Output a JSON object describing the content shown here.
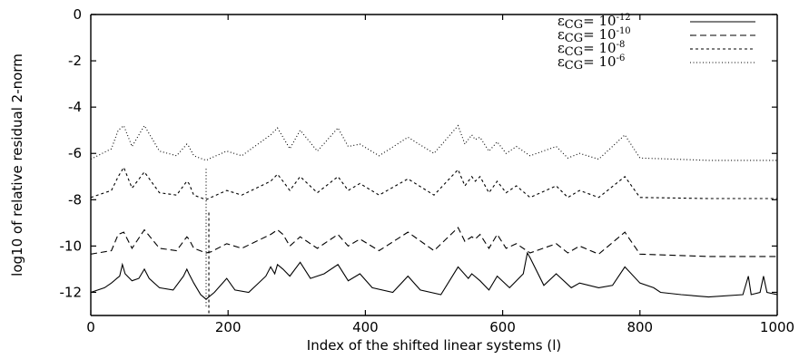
{
  "chart_data": {
    "type": "line",
    "title": "",
    "xlabel": "Index of the shifted linear systems (l)",
    "ylabel": "log10 of relative residual 2-norm",
    "xlim": [
      0,
      1000
    ],
    "ylim": [
      -13,
      0
    ],
    "xticks": [
      0,
      200,
      400,
      600,
      800,
      1000
    ],
    "yticks": [
      0,
      -2,
      -4,
      -6,
      -8,
      -10,
      -12
    ],
    "grid": false,
    "legend_position": "top-right",
    "peak_x": [
      40,
      48,
      78,
      140,
      143,
      198,
      262,
      272,
      280,
      305,
      360,
      392,
      462,
      535,
      555,
      567,
      592,
      620,
      678,
      712,
      778
    ],
    "series": [
      {
        "name": "10^-12",
        "legend_symbol": "ε",
        "legend_sub": "CG",
        "legend_base": "= 10",
        "legend_exp": "-12",
        "dash": "none",
        "x": [
          0,
          20,
          30,
          38,
          42,
          46,
          50,
          60,
          70,
          78,
          85,
          100,
          120,
          135,
          140,
          143,
          150,
          160,
          168,
          172,
          180,
          198,
          210,
          230,
          255,
          262,
          268,
          272,
          280,
          290,
          305,
          320,
          340,
          360,
          375,
          392,
          410,
          440,
          462,
          480,
          510,
          535,
          550,
          555,
          567,
          580,
          592,
          610,
          620,
          630,
          636,
          640,
          660,
          678,
          700,
          712,
          740,
          760,
          778,
          800,
          820,
          830,
          860,
          900,
          950,
          958,
          962,
          975,
          980,
          985,
          1000
        ],
        "y": [
          -12.0,
          -11.8,
          -11.6,
          -11.4,
          -11.3,
          -10.8,
          -11.2,
          -11.5,
          -11.4,
          -11.0,
          -11.4,
          -11.8,
          -11.9,
          -11.3,
          -11.0,
          -11.2,
          -11.6,
          -12.1,
          -12.3,
          -12.2,
          -12.0,
          -11.4,
          -11.9,
          -12.0,
          -11.3,
          -10.9,
          -11.2,
          -10.8,
          -11.0,
          -11.3,
          -10.7,
          -11.4,
          -11.2,
          -10.8,
          -11.5,
          -11.2,
          -11.8,
          -12.0,
          -11.3,
          -11.9,
          -12.1,
          -10.9,
          -11.4,
          -11.2,
          -11.5,
          -11.9,
          -11.3,
          -11.8,
          -11.5,
          -11.2,
          -10.3,
          -10.5,
          -11.7,
          -11.2,
          -11.8,
          -11.6,
          -11.8,
          -11.7,
          -10.9,
          -11.6,
          -11.8,
          -12.0,
          -12.1,
          -12.2,
          -12.1,
          -11.3,
          -12.1,
          -12.0,
          -11.3,
          -12.0,
          -12.1
        ]
      },
      {
        "name": "10^-10",
        "legend_symbol": "ε",
        "legend_sub": "CG",
        "legend_base": "= 10",
        "legend_exp": "-10",
        "dash": "7,4",
        "x": [
          0,
          30,
          40,
          48,
          60,
          78,
          100,
          125,
          140,
          143,
          150,
          168,
          175,
          198,
          220,
          262,
          272,
          280,
          290,
          305,
          330,
          360,
          375,
          392,
          420,
          462,
          500,
          535,
          545,
          555,
          560,
          567,
          580,
          592,
          605,
          620,
          640,
          678,
          695,
          712,
          740,
          778,
          800,
          900,
          1000
        ],
        "y": [
          -10.35,
          -10.2,
          -9.5,
          -9.4,
          -10.1,
          -9.3,
          -10.1,
          -10.2,
          -9.6,
          -9.7,
          -10.1,
          -10.3,
          -10.25,
          -9.9,
          -10.1,
          -9.5,
          -9.3,
          -9.5,
          -10.0,
          -9.6,
          -10.1,
          -9.5,
          -10.0,
          -9.7,
          -10.2,
          -9.4,
          -10.2,
          -9.2,
          -9.8,
          -9.6,
          -9.7,
          -9.5,
          -10.1,
          -9.5,
          -10.1,
          -9.9,
          -10.3,
          -9.9,
          -10.3,
          -10.0,
          -10.35,
          -9.4,
          -10.35,
          -10.45,
          -10.45
        ]
      },
      {
        "name": "10^-8",
        "legend_symbol": "ε",
        "legend_sub": "CG",
        "legend_base": "= 10",
        "legend_exp": "-8",
        "dash": "3,3",
        "x": [
          0,
          30,
          40,
          48,
          60,
          78,
          100,
          125,
          140,
          143,
          150,
          168,
          175,
          198,
          220,
          262,
          272,
          280,
          290,
          305,
          330,
          360,
          375,
          392,
          420,
          462,
          500,
          535,
          545,
          555,
          560,
          567,
          580,
          592,
          605,
          620,
          640,
          678,
          695,
          712,
          740,
          778,
          800,
          900,
          1000
        ],
        "y": [
          -7.9,
          -7.6,
          -7.0,
          -6.6,
          -7.5,
          -6.8,
          -7.7,
          -7.8,
          -7.2,
          -7.3,
          -7.8,
          -8.0,
          -7.9,
          -7.6,
          -7.8,
          -7.2,
          -6.9,
          -7.2,
          -7.6,
          -7.0,
          -7.7,
          -7.0,
          -7.6,
          -7.3,
          -7.8,
          -7.1,
          -7.8,
          -6.7,
          -7.4,
          -7.0,
          -7.2,
          -7.0,
          -7.7,
          -7.2,
          -7.7,
          -7.4,
          -7.9,
          -7.4,
          -7.9,
          -7.6,
          -7.9,
          -7.0,
          -7.9,
          -7.95,
          -7.95
        ]
      },
      {
        "name": "10^-6",
        "legend_symbol": "ε",
        "legend_sub": "CG",
        "legend_base": "= 10",
        "legend_exp": "-6",
        "dash": "1,2.5",
        "x": [
          0,
          30,
          40,
          48,
          60,
          78,
          100,
          125,
          140,
          143,
          150,
          168,
          175,
          198,
          220,
          262,
          272,
          280,
          290,
          305,
          330,
          360,
          375,
          392,
          420,
          462,
          500,
          535,
          545,
          555,
          560,
          567,
          580,
          592,
          605,
          620,
          640,
          678,
          695,
          712,
          740,
          778,
          800,
          900,
          1000
        ],
        "y": [
          -6.25,
          -5.8,
          -5.0,
          -4.8,
          -5.7,
          -4.8,
          -5.9,
          -6.1,
          -5.6,
          -5.7,
          -6.1,
          -6.3,
          -6.2,
          -5.9,
          -6.1,
          -5.2,
          -4.9,
          -5.3,
          -5.8,
          -5.0,
          -5.9,
          -4.9,
          -5.7,
          -5.6,
          -6.1,
          -5.3,
          -6.0,
          -4.8,
          -5.6,
          -5.2,
          -5.4,
          -5.3,
          -5.9,
          -5.5,
          -6.0,
          -5.7,
          -6.1,
          -5.7,
          -6.2,
          -6.0,
          -6.25,
          -5.2,
          -6.2,
          -6.3,
          -6.3
        ]
      }
    ],
    "annotations": [
      {
        "type": "vertical-spike",
        "x": 168,
        "y_from": -12.6,
        "y_to": -6.6,
        "series": "10^-6"
      },
      {
        "type": "vertical-spike",
        "x": 172,
        "y_from": -12.9,
        "y_to": -8.5,
        "series": "10^-8"
      }
    ]
  }
}
